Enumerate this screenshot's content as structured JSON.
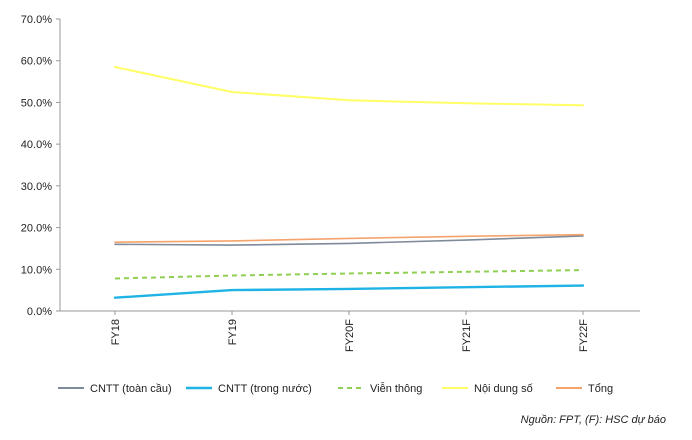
{
  "chart_data": {
    "type": "line",
    "categories": [
      "FY18",
      "FY19",
      "FY20F",
      "FY21F",
      "FY22F"
    ],
    "ylim": [
      0,
      70
    ],
    "ytick_step": 10,
    "ytick_labels": [
      "0.0%",
      "10.0%",
      "20.0%",
      "30.0%",
      "40.0%",
      "50.0%",
      "60.0%",
      "70.0%"
    ],
    "grid": false,
    "legend_position": "bottom",
    "series": [
      {
        "name": "CNTT (toàn cầu)",
        "values": [
          16.0,
          15.8,
          16.2,
          17.0,
          18.0
        ],
        "color": "#7f8a9a",
        "style": "solid"
      },
      {
        "name": "CNTT (trong nước)",
        "values": [
          3.2,
          5.0,
          5.3,
          5.7,
          6.1
        ],
        "color": "#1fb3e5",
        "style": "solid"
      },
      {
        "name": "Viễn thông",
        "values": [
          7.8,
          8.5,
          9.0,
          9.4,
          9.8
        ],
        "color": "#8fcf52",
        "style": "dashed"
      },
      {
        "name": "Nội dung số",
        "values": [
          58.5,
          52.5,
          50.5,
          49.8,
          49.3
        ],
        "color": "#ffff66",
        "style": "solid"
      },
      {
        "name": "Tổng",
        "values": [
          16.5,
          16.8,
          17.4,
          17.9,
          18.3
        ],
        "color": "#f4a36c",
        "style": "solid"
      }
    ]
  },
  "source_note": "Nguồn: FPT, (F): HSC dự báo"
}
